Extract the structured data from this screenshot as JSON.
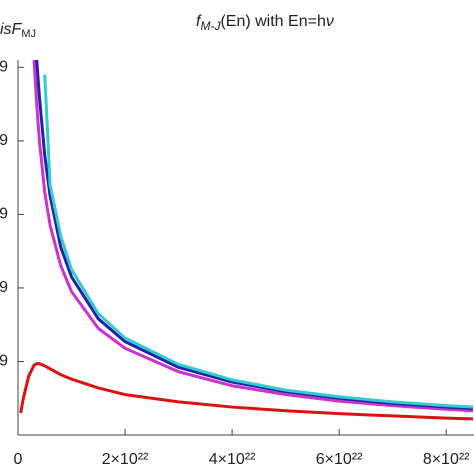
{
  "chart_data": {
    "type": "line",
    "title_parts": [
      "f",
      "M-J",
      "(En) with En=h",
      "ν"
    ],
    "y_label": "isF",
    "y_label_sub": "MJ",
    "x": [
      5e+20,
      1e+21,
      2e+21,
      3e+21,
      3.5e+21,
      4e+21,
      5e+21,
      6e+21,
      8e+21,
      1e+22,
      1.5e+22,
      2e+22,
      3e+22,
      4e+22,
      5e+22,
      6e+22,
      7e+22,
      8e+22,
      8.5e+22
    ],
    "series": [
      {
        "color": "#cc33cc",
        "values": [
          null,
          null,
          null,
          5.1e-09,
          4.5e-09,
          4e-09,
          3.3e-09,
          2.85e-09,
          2.3e-09,
          1.95e-09,
          1.45e-09,
          1.18e-09,
          8.6e-10,
          6.7e-10,
          5.5e-10,
          4.6e-10,
          4e-10,
          3.5e-10,
          3.3e-10
        ]
      },
      {
        "color": "#2222aa",
        "values": [
          null,
          null,
          null,
          null,
          5.1e-09,
          4.6e-09,
          3.8e-09,
          3.25e-09,
          2.55e-09,
          2.15e-09,
          1.58e-09,
          1.27e-09,
          9.2e-10,
          7.2e-10,
          5.9e-10,
          5e-10,
          4.3e-10,
          3.8e-10,
          3.6e-10
        ]
      },
      {
        "color": "#33cccc",
        "values": [
          null,
          null,
          null,
          null,
          null,
          null,
          4.9e-09,
          3.4e-09,
          2.7e-09,
          2.25e-09,
          1.65e-09,
          1.32e-09,
          9.6e-10,
          7.5e-10,
          6.1e-10,
          5.2e-10,
          4.5e-10,
          4e-10,
          3.8e-10
        ]
      },
      {
        "color": "#dd1111",
        "values": [
          3e-10,
          5e-10,
          8e-10,
          9.5e-10,
          9.7e-10,
          9.7e-10,
          9.4e-10,
          9e-10,
          8.2e-10,
          7.6e-10,
          6.4e-10,
          5.5e-10,
          4.5e-10,
          3.8e-10,
          3.3e-10,
          2.9e-10,
          2.6e-10,
          2.3e-10,
          2.2e-10
        ]
      }
    ],
    "xlim": [
      0,
      8.52e+22
    ],
    "xticks": [
      0,
      {
        "value": 2e+22,
        "label": "2×10²²"
      },
      {
        "value": 4e+22,
        "label": "4×10²²"
      },
      {
        "value": 6e+22,
        "label": "6×10²²"
      },
      {
        "value": 8e+22,
        "label": "8×10²²"
      }
    ],
    "ylim": [
      0,
      5.1e-09
    ],
    "yticks": [
      {
        "value": 1e-09,
        "label": "9"
      },
      {
        "value": 2e-09,
        "label": "9"
      },
      {
        "value": 3e-09,
        "label": "9"
      },
      {
        "value": 4e-09,
        "label": "9"
      },
      {
        "value": 5e-09,
        "label": "9"
      }
    ],
    "grid": false
  }
}
